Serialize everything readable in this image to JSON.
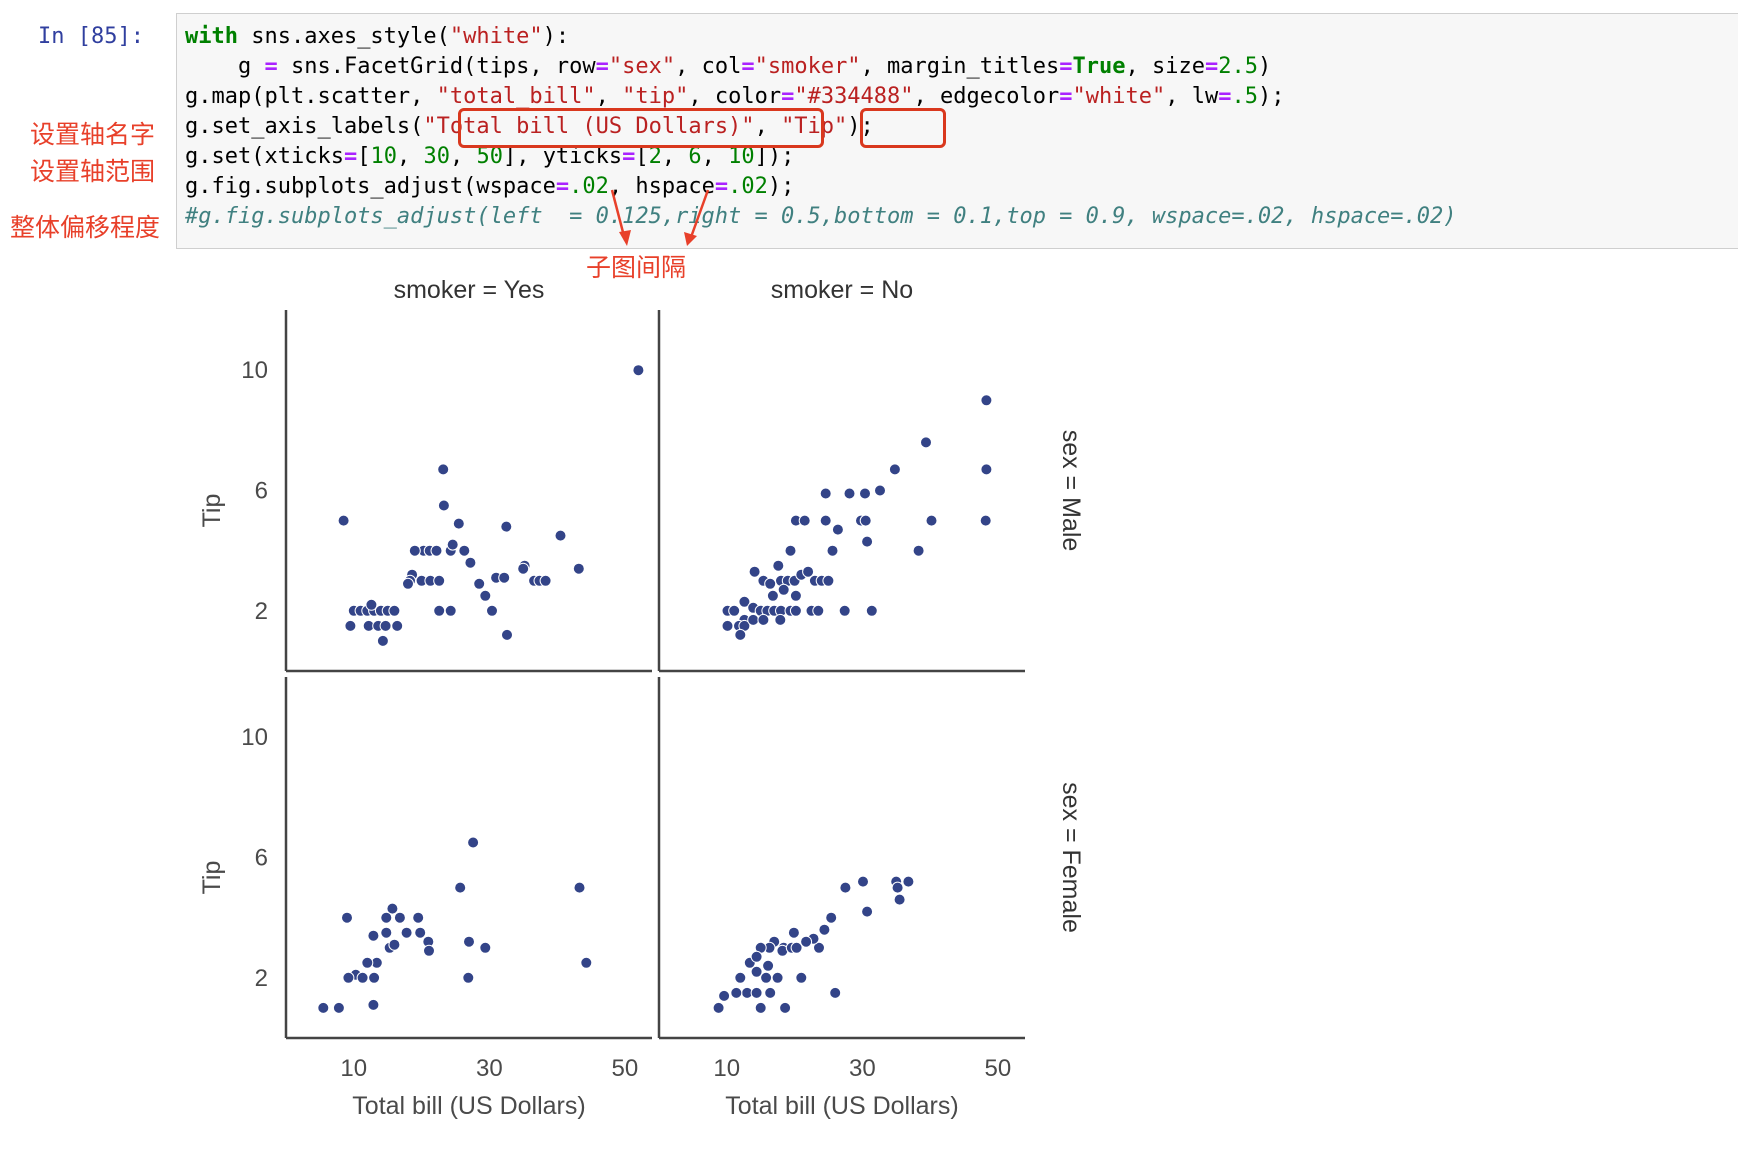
{
  "cell": {
    "prompt": "In [85]:",
    "code_lines": [
      [
        {
          "t": "with",
          "c": "kw"
        },
        {
          "t": " sns.axes_style("
        },
        {
          "t": "\"white\"",
          "c": "str"
        },
        {
          "t": "):"
        }
      ],
      [
        {
          "t": "    g "
        },
        {
          "t": "=",
          "c": "op"
        },
        {
          "t": " sns.FacetGrid(tips, row"
        },
        {
          "t": "=",
          "c": "op"
        },
        {
          "t": "\"sex\"",
          "c": "str"
        },
        {
          "t": ", col"
        },
        {
          "t": "=",
          "c": "op"
        },
        {
          "t": "\"smoker\"",
          "c": "str"
        },
        {
          "t": ", margin_titles"
        },
        {
          "t": "=",
          "c": "op"
        },
        {
          "t": "True",
          "c": "kw"
        },
        {
          "t": ", size"
        },
        {
          "t": "=",
          "c": "op"
        },
        {
          "t": "2.5",
          "c": "num"
        },
        {
          "t": ")"
        }
      ],
      [
        {
          "t": "g.map(plt.scatter, "
        },
        {
          "t": "\"total_bill\"",
          "c": "str"
        },
        {
          "t": ", "
        },
        {
          "t": "\"tip\"",
          "c": "str"
        },
        {
          "t": ", color"
        },
        {
          "t": "=",
          "c": "op"
        },
        {
          "t": "\"#334488\"",
          "c": "str"
        },
        {
          "t": ", edgecolor"
        },
        {
          "t": "=",
          "c": "op"
        },
        {
          "t": "\"white\"",
          "c": "str"
        },
        {
          "t": ", lw"
        },
        {
          "t": "=",
          "c": "op"
        },
        {
          "t": ".5",
          "c": "num"
        },
        {
          "t": ");"
        }
      ],
      [
        {
          "t": "g.set_axis_labels("
        },
        {
          "t": "\"Total bill (US Dollars)\"",
          "c": "str"
        },
        {
          "t": ", "
        },
        {
          "t": "\"Tip\"",
          "c": "str"
        },
        {
          "t": ");"
        }
      ],
      [
        {
          "t": "g.set(xticks"
        },
        {
          "t": "=",
          "c": "op"
        },
        {
          "t": "["
        },
        {
          "t": "10",
          "c": "num"
        },
        {
          "t": ", "
        },
        {
          "t": "30",
          "c": "num"
        },
        {
          "t": ", "
        },
        {
          "t": "50",
          "c": "num"
        },
        {
          "t": "], yticks"
        },
        {
          "t": "=",
          "c": "op"
        },
        {
          "t": "["
        },
        {
          "t": "2",
          "c": "num"
        },
        {
          "t": ", "
        },
        {
          "t": "6",
          "c": "num"
        },
        {
          "t": ", "
        },
        {
          "t": "10",
          "c": "num"
        },
        {
          "t": "]);"
        }
      ],
      [
        {
          "t": "g.fig.subplots_adjust(wspace"
        },
        {
          "t": "=",
          "c": "op"
        },
        {
          "t": ".02",
          "c": "num"
        },
        {
          "t": ", hspace"
        },
        {
          "t": "=",
          "c": "op"
        },
        {
          "t": ".02",
          "c": "num"
        },
        {
          "t": ");"
        }
      ],
      [
        {
          "t": "#g.fig.subplots_adjust(left  = 0.125,right = 0.5,bottom = 0.1,top = 0.9, wspace=.02, hspace=.02)",
          "c": "com"
        }
      ]
    ]
  },
  "annotations": {
    "axis_names": "设置轴名字",
    "axis_range": "设置轴范围",
    "overall_offset": "整体偏移程度",
    "subplot_spacing": "子图间隔"
  },
  "colors": {
    "marker": "#334488",
    "annotation": "#e8402a",
    "prompt": "#303f9f"
  },
  "chart_data": {
    "type": "scatter",
    "layout": "facet-grid 2x2",
    "col_titles": [
      "smoker = Yes",
      "smoker = No"
    ],
    "row_titles": [
      "sex = Male",
      "sex = Female"
    ],
    "xlabel": "Total bill (US Dollars)",
    "ylabel": "Tip",
    "xticks": [
      10,
      30,
      50
    ],
    "yticks": [
      2,
      6,
      10
    ],
    "xlim": [
      0,
      54
    ],
    "ylim": [
      0,
      12
    ],
    "panels": [
      {
        "row": "sex = Male",
        "col": "smoker = Yes",
        "points": [
          [
            52.0,
            10.0
          ],
          [
            8.5,
            5.0
          ],
          [
            23.2,
            6.7
          ],
          [
            23.3,
            5.5
          ],
          [
            25.5,
            4.9
          ],
          [
            32.5,
            4.8
          ],
          [
            40.5,
            4.5
          ],
          [
            20.3,
            4.0
          ],
          [
            21.2,
            4.0
          ],
          [
            22.2,
            4.0
          ],
          [
            24.3,
            4.0
          ],
          [
            19.0,
            4.0
          ],
          [
            24.6,
            4.2
          ],
          [
            26.3,
            4.0
          ],
          [
            27.2,
            3.6
          ],
          [
            35.2,
            3.5
          ],
          [
            35.0,
            3.4
          ],
          [
            43.2,
            3.4
          ],
          [
            18.6,
            3.2
          ],
          [
            20.0,
            3.0
          ],
          [
            21.3,
            3.0
          ],
          [
            22.6,
            3.0
          ],
          [
            18.3,
            3.0
          ],
          [
            18.0,
            2.9
          ],
          [
            31.0,
            3.1
          ],
          [
            32.2,
            3.1
          ],
          [
            36.6,
            3.0
          ],
          [
            37.4,
            3.0
          ],
          [
            38.3,
            3.0
          ],
          [
            28.5,
            2.9
          ],
          [
            29.4,
            2.5
          ],
          [
            10.0,
            2.0
          ],
          [
            11.0,
            2.0
          ],
          [
            12.0,
            2.0
          ],
          [
            13.0,
            2.0
          ],
          [
            14.0,
            2.0
          ],
          [
            15.0,
            2.0
          ],
          [
            16.0,
            2.0
          ],
          [
            12.6,
            2.2
          ],
          [
            22.6,
            2.0
          ],
          [
            24.3,
            2.0
          ],
          [
            30.4,
            2.0
          ],
          [
            9.5,
            1.5
          ],
          [
            12.2,
            1.5
          ],
          [
            13.6,
            1.5
          ],
          [
            14.7,
            1.5
          ],
          [
            16.4,
            1.5
          ],
          [
            14.3,
            1.0
          ],
          [
            32.6,
            1.2
          ]
        ]
      },
      {
        "row": "sex = Male",
        "col": "smoker = No",
        "points": [
          [
            48.3,
            9.0
          ],
          [
            39.4,
            7.6
          ],
          [
            48.3,
            6.7
          ],
          [
            34.8,
            6.7
          ],
          [
            32.6,
            6.0
          ],
          [
            24.6,
            5.9
          ],
          [
            28.1,
            5.9
          ],
          [
            30.4,
            5.9
          ],
          [
            20.2,
            5.0
          ],
          [
            21.5,
            5.0
          ],
          [
            24.6,
            5.0
          ],
          [
            29.8,
            5.0
          ],
          [
            30.5,
            5.0
          ],
          [
            40.2,
            5.0
          ],
          [
            48.2,
            5.0
          ],
          [
            30.7,
            4.3
          ],
          [
            26.4,
            4.7
          ],
          [
            25.6,
            4.0
          ],
          [
            38.3,
            4.0
          ],
          [
            19.4,
            4.0
          ],
          [
            17.6,
            3.5
          ],
          [
            18.0,
            3.0
          ],
          [
            19.0,
            3.0
          ],
          [
            20.0,
            3.0
          ],
          [
            21.0,
            3.2
          ],
          [
            22.0,
            3.3
          ],
          [
            23.0,
            3.0
          ],
          [
            24.0,
            3.0
          ],
          [
            25.0,
            3.0
          ],
          [
            14.1,
            3.3
          ],
          [
            15.4,
            3.0
          ],
          [
            16.4,
            2.9
          ],
          [
            18.4,
            2.7
          ],
          [
            16.8,
            2.5
          ],
          [
            20.2,
            2.5
          ],
          [
            12.6,
            2.3
          ],
          [
            13.9,
            2.1
          ],
          [
            15.0,
            2.0
          ],
          [
            16.0,
            2.0
          ],
          [
            17.0,
            2.0
          ],
          [
            18.0,
            2.0
          ],
          [
            19.4,
            2.0
          ],
          [
            20.2,
            2.0
          ],
          [
            22.5,
            2.0
          ],
          [
            23.5,
            2.0
          ],
          [
            27.4,
            2.0
          ],
          [
            31.4,
            2.0
          ],
          [
            10.1,
            2.0
          ],
          [
            11.1,
            2.0
          ],
          [
            12.6,
            1.7
          ],
          [
            10.1,
            1.5
          ],
          [
            11.8,
            1.5
          ],
          [
            12.6,
            1.5
          ],
          [
            13.9,
            1.7
          ],
          [
            15.4,
            1.7
          ],
          [
            17.9,
            1.7
          ],
          [
            12.0,
            1.2
          ]
        ]
      },
      {
        "row": "sex = Female",
        "col": "smoker = Yes",
        "points": [
          [
            27.6,
            6.5
          ],
          [
            43.3,
            5.0
          ],
          [
            25.7,
            5.0
          ],
          [
            15.7,
            4.3
          ],
          [
            14.8,
            4.0
          ],
          [
            9.0,
            4.0
          ],
          [
            19.5,
            4.0
          ],
          [
            16.8,
            4.0
          ],
          [
            12.9,
            3.4
          ],
          [
            14.8,
            3.5
          ],
          [
            17.8,
            3.5
          ],
          [
            19.8,
            3.5
          ],
          [
            21.0,
            3.2
          ],
          [
            15.3,
            3.0
          ],
          [
            16.0,
            3.1
          ],
          [
            21.1,
            2.9
          ],
          [
            27.0,
            3.2
          ],
          [
            29.4,
            3.0
          ],
          [
            13.4,
            2.5
          ],
          [
            12.0,
            2.5
          ],
          [
            10.3,
            2.1
          ],
          [
            11.3,
            2.0
          ],
          [
            13.0,
            2.0
          ],
          [
            9.2,
            2.0
          ],
          [
            26.9,
            2.0
          ],
          [
            44.3,
            2.5
          ],
          [
            12.9,
            1.1
          ],
          [
            5.5,
            1.0
          ],
          [
            7.8,
            1.0
          ]
        ]
      },
      {
        "row": "sex = Female",
        "col": "smoker = No",
        "points": [
          [
            36.8,
            5.2
          ],
          [
            35.0,
            5.2
          ],
          [
            35.2,
            5.0
          ],
          [
            30.1,
            5.2
          ],
          [
            27.5,
            5.0
          ],
          [
            35.5,
            4.6
          ],
          [
            30.7,
            4.2
          ],
          [
            25.4,
            4.0
          ],
          [
            24.4,
            3.6
          ],
          [
            19.9,
            3.5
          ],
          [
            23.6,
            3.0
          ],
          [
            22.8,
            3.3
          ],
          [
            21.7,
            3.2
          ],
          [
            18.4,
            3.0
          ],
          [
            18.2,
            2.9
          ],
          [
            17.0,
            3.2
          ],
          [
            16.3,
            3.0
          ],
          [
            15.0,
            3.0
          ],
          [
            19.6,
            3.0
          ],
          [
            20.3,
            3.0
          ],
          [
            21.0,
            2.0
          ],
          [
            17.5,
            2.0
          ],
          [
            13.4,
            2.5
          ],
          [
            14.4,
            2.7
          ],
          [
            16.1,
            2.4
          ],
          [
            14.4,
            2.2
          ],
          [
            15.8,
            2.0
          ],
          [
            12.0,
            2.0
          ],
          [
            13.0,
            1.5
          ],
          [
            14.4,
            1.5
          ],
          [
            16.4,
            1.5
          ],
          [
            11.4,
            1.5
          ],
          [
            9.6,
            1.4
          ],
          [
            8.8,
            1.0
          ],
          [
            15.0,
            1.0
          ],
          [
            18.6,
            1.0
          ],
          [
            26.0,
            1.5
          ]
        ]
      }
    ]
  }
}
